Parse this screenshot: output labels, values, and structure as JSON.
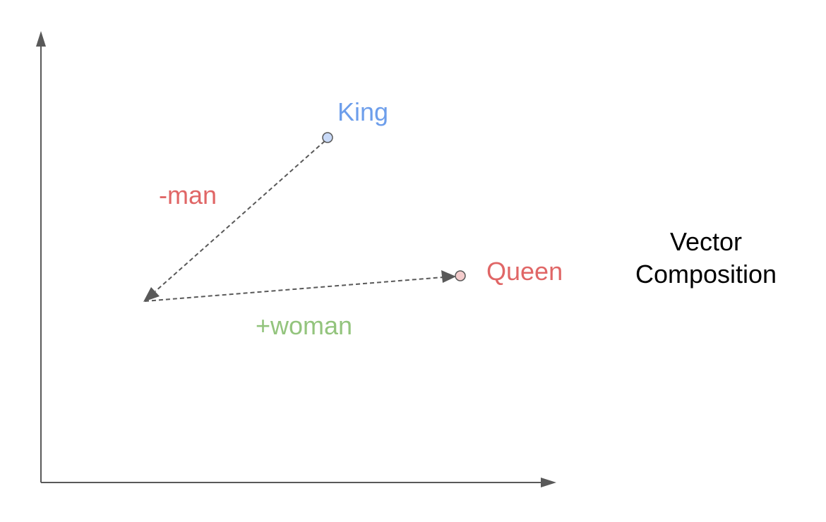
{
  "title": {
    "line1": "Vector",
    "line2": "Composition"
  },
  "points": {
    "king": {
      "label": "King",
      "color": "#6d9eeb",
      "fill": "#c9daf8"
    },
    "queen": {
      "label": "Queen",
      "color": "#e06666",
      "fill": "#f4cccc"
    }
  },
  "vectors": {
    "minus_man": {
      "label": "-man",
      "color": "#e06666"
    },
    "plus_woman": {
      "label": "+woman",
      "color": "#93c47d"
    }
  },
  "colors": {
    "axis": "#595959",
    "dashed_line": "#595959",
    "point_stroke": "#595959",
    "title_text": "#000000"
  }
}
